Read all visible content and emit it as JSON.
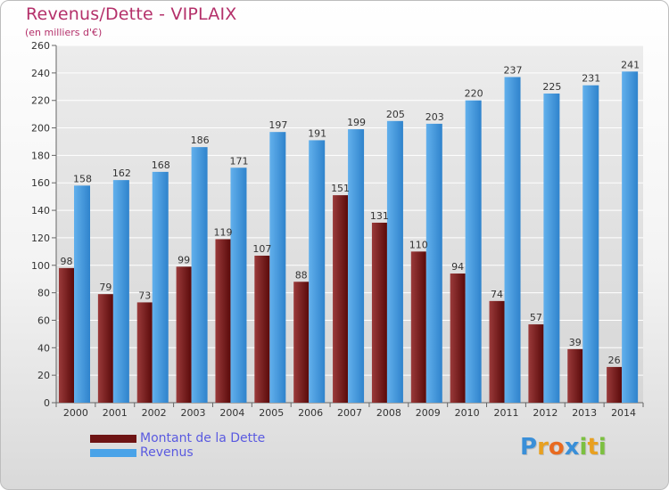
{
  "title": "Revenus/Dette - VIPLAIX",
  "subtitle": "(en milliers d'€)",
  "colors": {
    "title": "#b4306a",
    "dette_dark": "#5a0a0a",
    "dette_light": "#9a3a3a",
    "revenus_dark": "#2f83cc",
    "revenus_light": "#62b0ec",
    "grid": "#ffffff"
  },
  "legend": {
    "items": [
      {
        "label": "Montant de la Dette",
        "color": "#6e1414"
      },
      {
        "label": "Revenus",
        "color": "#4aa3e8"
      }
    ]
  },
  "logo": {
    "text": "Proxiti",
    "letters": [
      {
        "ch": "P",
        "color": "#3a8fd8"
      },
      {
        "ch": "r",
        "color": "#e8a020"
      },
      {
        "ch": "o",
        "color": "#e86a20"
      },
      {
        "ch": "x",
        "color": "#3a8fd8"
      },
      {
        "ch": "i",
        "color": "#7cc040"
      },
      {
        "ch": "t",
        "color": "#e8a020"
      },
      {
        "ch": "i",
        "color": "#7cc040"
      }
    ]
  },
  "chart_data": {
    "type": "bar",
    "title": "Revenus/Dette - VIPLAIX",
    "ylabel": "(en milliers d'€)",
    "categories": [
      "2000",
      "2001",
      "2002",
      "2003",
      "2004",
      "2005",
      "2006",
      "2007",
      "2008",
      "2009",
      "2010",
      "2011",
      "2012",
      "2013",
      "2014"
    ],
    "series": [
      {
        "name": "Montant de la Dette",
        "values": [
          98,
          79,
          73,
          99,
          119,
          107,
          88,
          151,
          131,
          110,
          94,
          74,
          57,
          39,
          26
        ]
      },
      {
        "name": "Revenus",
        "values": [
          158,
          162,
          168,
          186,
          171,
          197,
          191,
          199,
          205,
          203,
          220,
          237,
          225,
          231,
          241
        ]
      }
    ],
    "ylim": [
      0,
      260
    ],
    "yticks": [
      0,
      20,
      40,
      60,
      80,
      100,
      120,
      140,
      160,
      180,
      200,
      220,
      240,
      260
    ],
    "grid": true,
    "legend_position": "bottom-left"
  }
}
